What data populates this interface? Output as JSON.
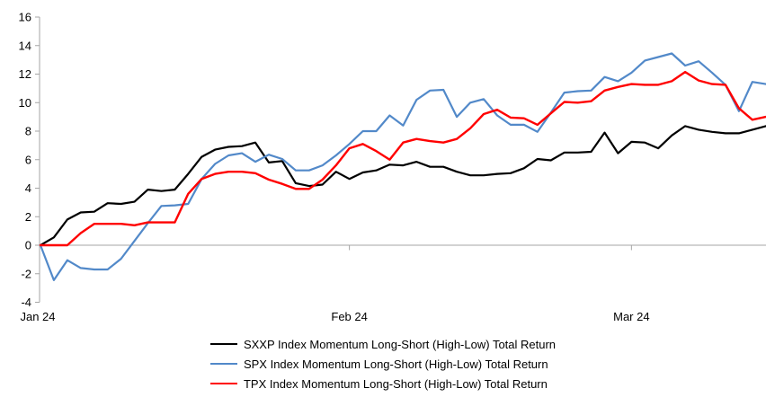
{
  "chart_data": {
    "type": "line",
    "title": "",
    "background": "#FFFFFF",
    "x_axis": {
      "tick_labels": [
        "Jan 24",
        "Feb 24",
        "Mar 24"
      ],
      "tick_point_index": [
        0,
        23,
        44
      ],
      "n_points": 55
    },
    "y_axis": {
      "min": -4,
      "max": 16,
      "step": 2,
      "tick_labels": [
        "16",
        "14",
        "12",
        "10",
        "8",
        "6",
        "4",
        "2",
        "0",
        "-2",
        "-4"
      ]
    },
    "gridlines": "zero-line-only",
    "legend_position": "bottom",
    "series": [
      {
        "name": "SXXP Index Momentum Long-Short (High-Low) Total Return",
        "color": "#000000",
        "stroke_width": 2.2,
        "values": [
          0,
          0.55,
          1.8,
          2.3,
          2.35,
          2.95,
          2.9,
          3.05,
          3.9,
          3.8,
          3.9,
          5.0,
          6.2,
          6.7,
          6.9,
          6.95,
          7.2,
          5.8,
          5.9,
          4.35,
          4.15,
          4.25,
          5.15,
          4.65,
          5.1,
          5.25,
          5.65,
          5.6,
          5.85,
          5.5,
          5.5,
          5.15,
          4.9,
          4.9,
          5.0,
          5.05,
          5.4,
          6.05,
          5.95,
          6.5,
          6.5,
          6.55,
          7.9,
          6.45,
          7.25,
          7.2,
          6.8,
          7.7,
          8.35,
          8.1,
          7.95,
          7.85,
          7.85,
          8.1,
          8.35
        ]
      },
      {
        "name": "SPX Index Momentum Long-Short (High-Low) Total Return",
        "color": "#5289C9",
        "stroke_width": 2.2,
        "values": [
          0,
          -2.45,
          -1.05,
          -1.6,
          -1.7,
          -1.7,
          -0.95,
          0.3,
          1.55,
          2.75,
          2.8,
          2.9,
          4.65,
          5.7,
          6.3,
          6.45,
          5.85,
          6.35,
          6.05,
          5.25,
          5.25,
          5.6,
          6.3,
          7.1,
          8.0,
          8.0,
          9.1,
          8.4,
          10.2,
          10.85,
          10.9,
          9.0,
          10.0,
          10.25,
          9.1,
          8.45,
          8.45,
          7.95,
          9.3,
          10.7,
          10.8,
          10.85,
          11.8,
          11.5,
          12.1,
          12.95,
          13.2,
          13.45,
          12.6,
          12.9,
          12.1,
          11.25,
          9.4,
          11.45,
          11.3
        ]
      },
      {
        "name": "TPX Index Momentum Long-Short (High-Low) Total Return",
        "color": "#FF0000",
        "stroke_width": 2.4,
        "values": [
          0,
          0,
          0,
          0.85,
          1.5,
          1.5,
          1.5,
          1.4,
          1.6,
          1.6,
          1.6,
          3.6,
          4.65,
          5.0,
          5.15,
          5.15,
          5.05,
          4.6,
          4.3,
          3.95,
          3.95,
          4.6,
          5.6,
          6.8,
          7.1,
          6.6,
          6.0,
          7.2,
          7.45,
          7.3,
          7.2,
          7.45,
          8.2,
          9.2,
          9.5,
          8.95,
          8.9,
          8.45,
          9.25,
          10.05,
          10.0,
          10.1,
          10.85,
          11.1,
          11.3,
          11.25,
          11.25,
          11.5,
          12.15,
          11.55,
          11.3,
          11.25,
          9.6,
          8.8,
          9.0
        ]
      }
    ]
  },
  "colors": {
    "axis": "#A6A6A6",
    "zero_gridline": "#A6A6A6",
    "tick": "#A6A6A6",
    "label_text": "#000000"
  }
}
